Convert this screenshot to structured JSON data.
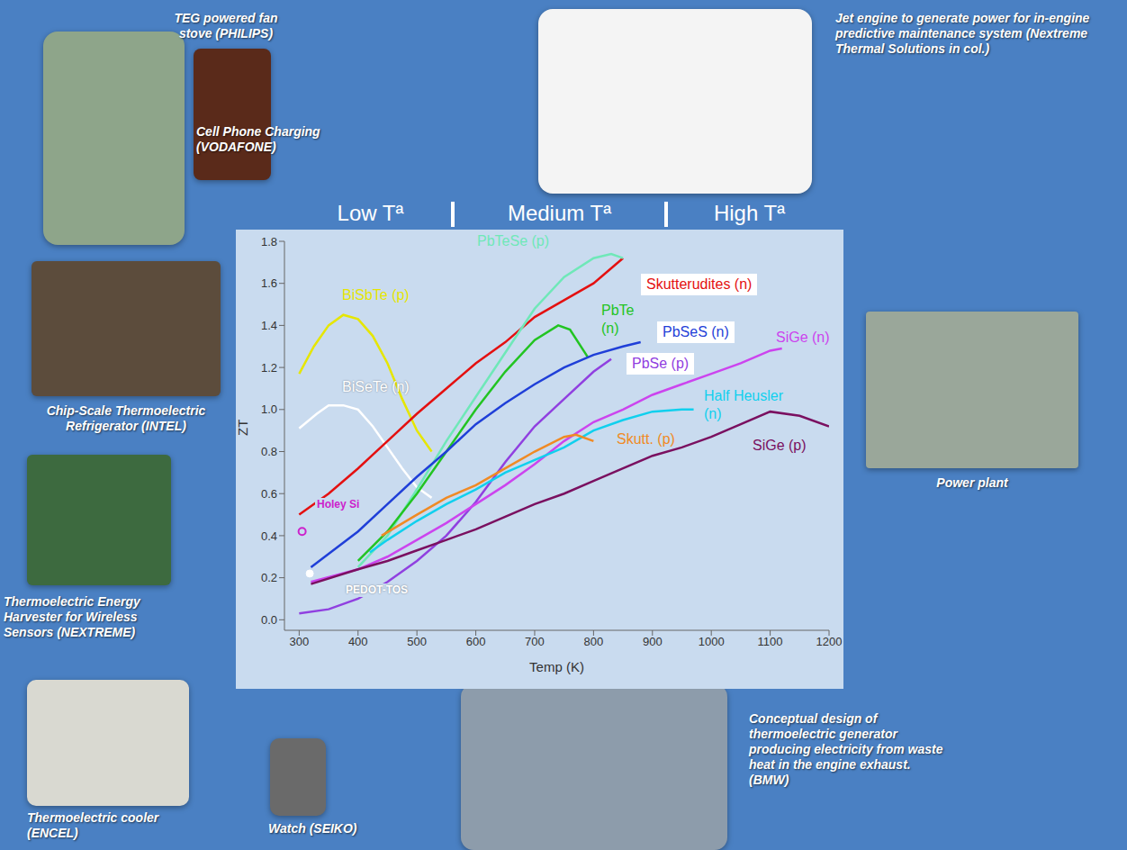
{
  "chart_data": {
    "type": "line",
    "x_label": "Temp (K)",
    "y_label": "ZT",
    "annotations": [
      "Low Tª",
      "Medium Tª",
      "High Tª"
    ],
    "xlim": [
      275,
      1200
    ],
    "xticks": [
      300,
      400,
      500,
      600,
      700,
      800,
      900,
      1000,
      1100,
      1200
    ],
    "ylim": [
      -0.05,
      1.8
    ],
    "yticks": [
      {
        "value": 0,
        "label": "0.0"
      },
      {
        "value": 0.2,
        "label": "0.2"
      },
      {
        "value": 0.4,
        "label": "0.4"
      },
      {
        "value": 0.6,
        "label": "0.6"
      },
      {
        "value": 0.8,
        "label": "0.8"
      },
      {
        "value": 1.0,
        "label": "1.0"
      },
      {
        "value": 1.2,
        "label": "1.2"
      },
      {
        "value": 1.4,
        "label": "1.4"
      },
      {
        "value": 1.6,
        "label": "1.6"
      },
      {
        "value": 1.8,
        "label": "1.8"
      }
    ],
    "grid": false,
    "series": [
      {
        "name": "BiSbTe (p)",
        "color": "#e6e600",
        "x": [
          300,
          325,
          350,
          375,
          400,
          425,
          450,
          475,
          500,
          525
        ],
        "values": [
          1.17,
          1.3,
          1.4,
          1.45,
          1.43,
          1.35,
          1.22,
          1.05,
          0.9,
          0.8
        ]
      },
      {
        "name": "BiSeTe (n)",
        "color": "#ffffff",
        "x": [
          300,
          330,
          350,
          375,
          400,
          425,
          450,
          475,
          500,
          525
        ],
        "values": [
          0.91,
          0.98,
          1.02,
          1.02,
          1.0,
          0.92,
          0.82,
          0.72,
          0.63,
          0.58
        ]
      },
      {
        "name": "Skutterudites (n)",
        "color": "#e41010",
        "x": [
          300,
          350,
          400,
          450,
          500,
          550,
          600,
          650,
          700,
          750,
          800,
          850
        ],
        "values": [
          0.5,
          0.6,
          0.72,
          0.85,
          0.98,
          1.1,
          1.22,
          1.32,
          1.44,
          1.52,
          1.6,
          1.72
        ]
      },
      {
        "name": "PbTeSe (p)",
        "color": "#6fe8b8",
        "x": [
          400,
          450,
          500,
          550,
          600,
          650,
          700,
          750,
          800,
          830,
          850
        ],
        "values": [
          0.25,
          0.4,
          0.62,
          0.85,
          1.06,
          1.27,
          1.48,
          1.63,
          1.72,
          1.74,
          1.72
        ]
      },
      {
        "name": "PbTe (n)",
        "color": "#22c422",
        "x": [
          400,
          450,
          500,
          550,
          600,
          650,
          700,
          740,
          760,
          790
        ],
        "values": [
          0.28,
          0.42,
          0.6,
          0.8,
          1.0,
          1.18,
          1.33,
          1.4,
          1.38,
          1.25
        ]
      },
      {
        "name": "PbSeS (n)",
        "color": "#1f3fd8",
        "x": [
          320,
          400,
          450,
          500,
          550,
          600,
          650,
          700,
          750,
          800,
          850,
          880
        ],
        "values": [
          0.25,
          0.42,
          0.55,
          0.68,
          0.8,
          0.93,
          1.03,
          1.12,
          1.2,
          1.26,
          1.3,
          1.32
        ]
      },
      {
        "name": "PbSe (p)",
        "color": "#9040e0",
        "x": [
          300,
          350,
          400,
          450,
          500,
          550,
          600,
          650,
          700,
          750,
          800,
          830
        ],
        "values": [
          0.03,
          0.05,
          0.1,
          0.18,
          0.28,
          0.4,
          0.56,
          0.75,
          0.92,
          1.05,
          1.18,
          1.24
        ]
      },
      {
        "name": "SiGe (n)",
        "color": "#cc44ee",
        "x": [
          320,
          400,
          450,
          500,
          550,
          600,
          650,
          700,
          750,
          800,
          850,
          900,
          950,
          1000,
          1050,
          1100,
          1120
        ],
        "values": [
          0.18,
          0.24,
          0.3,
          0.38,
          0.46,
          0.55,
          0.64,
          0.74,
          0.85,
          0.94,
          1.0,
          1.07,
          1.12,
          1.17,
          1.22,
          1.28,
          1.29
        ]
      },
      {
        "name": "Half Heusler (n)",
        "color": "#10d0ee",
        "x": [
          420,
          450,
          500,
          550,
          600,
          650,
          700,
          750,
          800,
          850,
          900,
          950,
          970
        ],
        "values": [
          0.32,
          0.38,
          0.47,
          0.55,
          0.62,
          0.7,
          0.76,
          0.82,
          0.9,
          0.95,
          0.99,
          1.0,
          1.0
        ]
      },
      {
        "name": "Skutt. (p)",
        "color": "#f08a24",
        "x": [
          440,
          500,
          550,
          600,
          650,
          700,
          750,
          770,
          800
        ],
        "values": [
          0.4,
          0.5,
          0.58,
          0.64,
          0.72,
          0.8,
          0.87,
          0.88,
          0.85
        ]
      },
      {
        "name": "SiGe (p)",
        "color": "#7a1060",
        "x": [
          320,
          400,
          450,
          500,
          550,
          600,
          650,
          700,
          750,
          800,
          850,
          900,
          950,
          1000,
          1050,
          1100,
          1150,
          1200
        ],
        "values": [
          0.17,
          0.24,
          0.28,
          0.33,
          0.38,
          0.43,
          0.49,
          0.55,
          0.6,
          0.66,
          0.72,
          0.78,
          0.82,
          0.87,
          0.93,
          0.99,
          0.97,
          0.92
        ]
      },
      {
        "name": "Holey Si",
        "color": "#cc22cc",
        "type": "scatter",
        "marker": "open_circle",
        "x": [
          305
        ],
        "values": [
          0.42
        ]
      },
      {
        "name": "PEDOT-TOS",
        "color": "#ffffff",
        "type": "scatter",
        "marker": "circle",
        "x": [
          318
        ],
        "values": [
          0.22
        ]
      }
    ]
  },
  "captions": [
    "Cell Phone Charging (VODAFONE)",
    "TEG powered fan stove (PHILIPS)",
    "Jet engine to generate power for in-engine predictive maintenance system (Nextreme Thermal Solutions in col.)",
    "Chip-Scale Thermoelectric Refrigerator (INTEL)",
    "Thermoelectric Energy Harvester for Wireless Sensors (NEXTREME)",
    "Thermoelectric cooler (ENCEL)",
    "Watch (SEIKO)",
    "Conceptual design of thermoelectric generator producing electricity from waste heat in the engine exhaust. (BMW)",
    "Power plant"
  ]
}
